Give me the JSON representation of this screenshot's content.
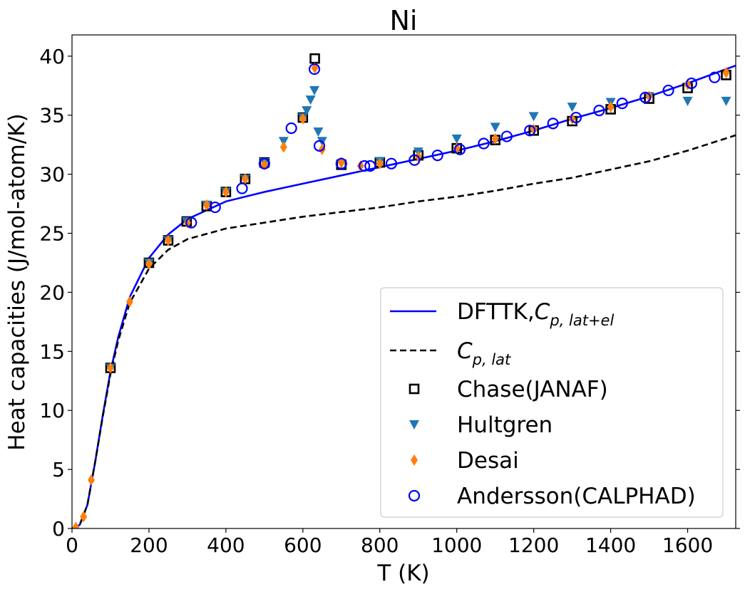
{
  "chart_data": {
    "type": "line",
    "title": "Ni",
    "xlabel": "T (K)",
    "ylabel": "Heat capacities (J/mol-atom/K)",
    "xlim": [
      0,
      1725
    ],
    "ylim": [
      0,
      41.8
    ],
    "xticks": [
      0,
      200,
      400,
      600,
      800,
      1000,
      1200,
      1400,
      1600
    ],
    "yticks": [
      0,
      5,
      10,
      15,
      20,
      25,
      30,
      35,
      40
    ],
    "grid": false,
    "legend_position": "bottom-right",
    "series": [
      {
        "name": "DFTTK,",
        "name_math_base": "C",
        "name_math_sub": "p, lat+el",
        "kind": "line",
        "style": "solid",
        "color": "#0000ff",
        "x": [
          0,
          20,
          40,
          60,
          80,
          100,
          120,
          150,
          200,
          250,
          300,
          400,
          500,
          600,
          700,
          800,
          900,
          1000,
          1100,
          1200,
          1300,
          1400,
          1500,
          1600,
          1725
        ],
        "y": [
          0,
          0.3,
          2.0,
          5.6,
          9.6,
          13.3,
          16.2,
          19.6,
          22.9,
          24.9,
          26.2,
          27.7,
          28.5,
          29.2,
          29.9,
          30.6,
          31.3,
          32.0,
          32.8,
          33.7,
          34.7,
          35.6,
          36.6,
          37.7,
          39.2
        ]
      },
      {
        "name": "",
        "name_math_base": "C",
        "name_math_sub": "p, lat",
        "kind": "line",
        "style": "dashed",
        "color": "#000000",
        "x": [
          0,
          20,
          40,
          60,
          80,
          100,
          120,
          150,
          200,
          250,
          300,
          400,
          500,
          600,
          700,
          800,
          900,
          1000,
          1100,
          1200,
          1300,
          1400,
          1500,
          1600,
          1725
        ],
        "y": [
          0,
          0.3,
          2.0,
          5.6,
          9.5,
          13.1,
          15.9,
          19.1,
          22.0,
          23.6,
          24.5,
          25.4,
          25.9,
          26.4,
          26.8,
          27.2,
          27.7,
          28.1,
          28.6,
          29.2,
          29.7,
          30.4,
          31.1,
          32.0,
          33.3
        ]
      },
      {
        "name": "Chase(JANAF)",
        "kind": "scatter",
        "marker": "square",
        "color": "#000000",
        "x": [
          100,
          200,
          250,
          298,
          350,
          400,
          450,
          500,
          600,
          631,
          700,
          800,
          900,
          1000,
          1100,
          1200,
          1300,
          1400,
          1500,
          1600,
          1700
        ],
        "y": [
          13.6,
          22.5,
          24.4,
          26.0,
          27.3,
          28.5,
          29.6,
          31.0,
          34.8,
          39.8,
          30.8,
          31.0,
          31.6,
          32.2,
          32.9,
          33.7,
          34.5,
          35.5,
          36.4,
          37.3,
          38.4
        ]
      },
      {
        "name": "Hultgren",
        "kind": "scatter",
        "marker": "triangle-down",
        "color": "#1f77b4",
        "x": [
          100,
          200,
          250,
          298,
          350,
          400,
          450,
          500,
          550,
          600,
          610,
          620,
          630,
          640,
          650,
          700,
          800,
          900,
          1000,
          1100,
          1200,
          1300,
          1400,
          1500,
          1600,
          1700
        ],
        "y": [
          13.6,
          22.5,
          24.4,
          26.0,
          27.4,
          28.5,
          29.6,
          31.0,
          32.8,
          34.8,
          35.4,
          36.3,
          37.1,
          33.6,
          32.8,
          30.9,
          31.1,
          31.9,
          33.0,
          34.0,
          34.9,
          35.7,
          36.1,
          36.6,
          36.2,
          36.2
        ]
      },
      {
        "name": "Desai",
        "kind": "scatter",
        "marker": "diamond",
        "color": "#ff7f0e",
        "x": [
          10,
          30,
          50,
          100,
          150,
          200,
          250,
          300,
          350,
          400,
          450,
          500,
          550,
          600,
          631,
          650,
          700,
          750,
          800,
          900,
          1000,
          1100,
          1200,
          1300,
          1400,
          1500,
          1600,
          1700
        ],
        "y": [
          0.1,
          1.0,
          4.1,
          13.6,
          19.2,
          22.4,
          24.4,
          25.9,
          27.4,
          28.5,
          29.6,
          30.8,
          32.3,
          34.7,
          39.0,
          32.1,
          31.0,
          30.7,
          30.9,
          31.5,
          32.2,
          33.0,
          33.8,
          34.7,
          35.7,
          36.6,
          37.6,
          38.6
        ]
      },
      {
        "name": "Andersson(CALPHAD)",
        "kind": "scatter",
        "marker": "circle-open",
        "color": "#0000ff",
        "x": [
          310,
          372,
          442,
          500,
          570,
          630,
          643,
          700,
          760,
          775,
          830,
          890,
          950,
          1008,
          1070,
          1130,
          1190,
          1250,
          1310,
          1370,
          1430,
          1490,
          1550,
          1610,
          1670
        ],
        "y": [
          25.9,
          27.2,
          28.8,
          30.9,
          33.9,
          38.9,
          32.4,
          30.9,
          30.7,
          30.7,
          30.9,
          31.2,
          31.6,
          32.1,
          32.6,
          33.2,
          33.7,
          34.3,
          34.8,
          35.4,
          36.0,
          36.5,
          37.1,
          37.7,
          38.2
        ]
      }
    ]
  }
}
